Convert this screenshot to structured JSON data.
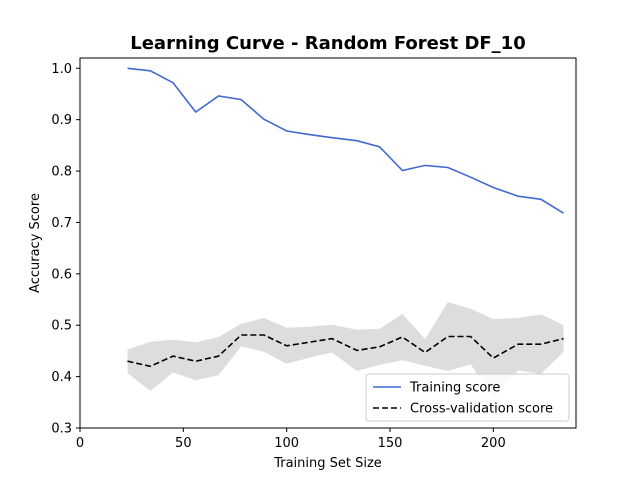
{
  "chart_data": {
    "type": "line",
    "title": "Learning Curve - Random Forest DF_10",
    "xlabel": "Training Set Size",
    "ylabel": "Accuracy Score",
    "xlim": [
      0,
      240
    ],
    "ylim": [
      0.3,
      1.02
    ],
    "xticks": [
      0,
      50,
      100,
      150,
      200
    ],
    "yticks": [
      0.3,
      0.4,
      0.5,
      0.6,
      0.7,
      0.8,
      0.9,
      1.0
    ],
    "xtick_labels": [
      "0",
      "50",
      "100",
      "150",
      "200"
    ],
    "ytick_labels": [
      "0.3",
      "0.4",
      "0.5",
      "0.6",
      "0.7",
      "0.8",
      "0.9",
      "1.0"
    ],
    "grid": false,
    "legend_position": "lower-right",
    "x": [
      23,
      34,
      45,
      56,
      67,
      78,
      89,
      100,
      111,
      122,
      134,
      145,
      156,
      167,
      178,
      189,
      200,
      212,
      223,
      234
    ],
    "series": [
      {
        "name": "Training score",
        "color": "#4169cf",
        "style": "solid",
        "values": [
          1.0,
          0.995,
          0.972,
          0.915,
          0.946,
          0.939,
          0.901,
          0.878,
          0.871,
          0.865,
          0.859,
          0.847,
          0.801,
          0.811,
          0.807,
          0.788,
          0.768,
          0.751,
          0.745,
          0.718
        ]
      },
      {
        "name": "Cross-validation score",
        "color": "#000000",
        "style": "dashed",
        "values": [
          0.43,
          0.42,
          0.44,
          0.43,
          0.44,
          0.481,
          0.481,
          0.46,
          0.467,
          0.474,
          0.451,
          0.458,
          0.477,
          0.447,
          0.478,
          0.478,
          0.436,
          0.463,
          0.463,
          0.474
        ],
        "band_upper": [
          0.453,
          0.468,
          0.472,
          0.467,
          0.477,
          0.503,
          0.514,
          0.495,
          0.497,
          0.501,
          0.491,
          0.493,
          0.522,
          0.473,
          0.545,
          0.532,
          0.512,
          0.514,
          0.521,
          0.5
        ],
        "band_lower": [
          0.407,
          0.372,
          0.408,
          0.393,
          0.403,
          0.459,
          0.448,
          0.425,
          0.437,
          0.447,
          0.411,
          0.423,
          0.432,
          0.421,
          0.411,
          0.424,
          0.36,
          0.412,
          0.405,
          0.448
        ],
        "band_color": "#dddddd"
      }
    ]
  }
}
